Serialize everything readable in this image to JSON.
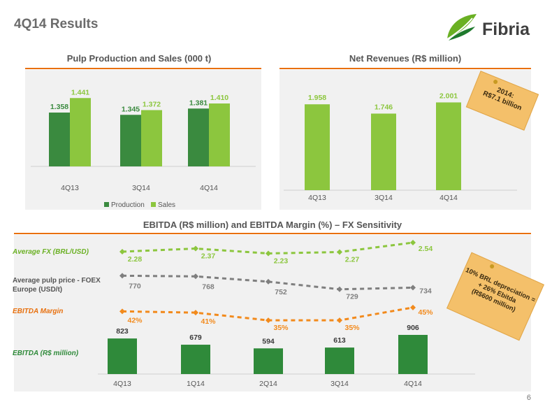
{
  "slide": {
    "title": "4Q14 Results",
    "page_number": "6"
  },
  "logo": {
    "text": "Fibria",
    "green": "#6ab023",
    "dark": "#1f7a2d"
  },
  "colors": {
    "production": "#3a8a3f",
    "sales": "#8cc63e",
    "fx": "#8cc63e",
    "pulp": "#7f7f7f",
    "margin": "#f28a1c",
    "ebitda": "#2f8a3a",
    "rule": "#e8700e"
  },
  "notes": {
    "revenue_note": "2014:\nR$7.1 billion",
    "fx_note": "10% BRL depreciation =\n+ 26% Ebitda\n(R$600 million)"
  },
  "chart_data": [
    {
      "type": "bar",
      "title": "Pulp Production and Sales (000 t)",
      "categories": [
        "4Q13",
        "3Q14",
        "4Q14"
      ],
      "series": [
        {
          "name": "Production",
          "values": [
            1.358,
            1.345,
            1.381
          ],
          "labels": [
            "1.358",
            "1.345",
            "1.381"
          ]
        },
        {
          "name": "Sales",
          "values": [
            1.441,
            1.372,
            1.41
          ],
          "labels": [
            "1.441",
            "1.372",
            "1.410"
          ]
        }
      ],
      "ylim": [
        1.05,
        1.45
      ],
      "legend": "bottom"
    },
    {
      "type": "bar",
      "title": "Net Revenues (R$ million)",
      "categories": [
        "4Q13",
        "3Q14",
        "4Q14"
      ],
      "values": [
        1958,
        1746,
        2001
      ],
      "labels": [
        "1.958",
        "1.746",
        "2.001"
      ],
      "ylim": [
        0,
        2200
      ]
    },
    {
      "type": "line",
      "title": "EBITDA (R$ million) and EBITDA Margin (%) – FX Sensitivity",
      "categories": [
        "4Q13",
        "1Q14",
        "2Q14",
        "3Q14",
        "4Q14"
      ],
      "series": [
        {
          "name": "Average FX (BRL/USD)",
          "values": [
            2.28,
            2.37,
            2.23,
            2.27,
            2.54
          ],
          "labels": [
            "2.28",
            "2.37",
            "2.23",
            "2.27",
            "2.54"
          ]
        },
        {
          "name": "Average pulp price - FOEX Europe (USD/t)",
          "values": [
            770,
            768,
            752,
            729,
            734
          ],
          "labels": [
            "770",
            "768",
            "752",
            "729",
            "734"
          ]
        },
        {
          "name": "EBITDA Margin",
          "values": [
            42,
            41,
            35,
            35,
            45
          ],
          "labels": [
            "42%",
            "41%",
            "35%",
            "35%",
            "45%"
          ]
        },
        {
          "name": "EBITDA (R$ million)",
          "type": "bar",
          "values": [
            823,
            679,
            594,
            613,
            906
          ],
          "labels": [
            "823",
            "679",
            "594",
            "613",
            "906"
          ]
        }
      ]
    }
  ]
}
